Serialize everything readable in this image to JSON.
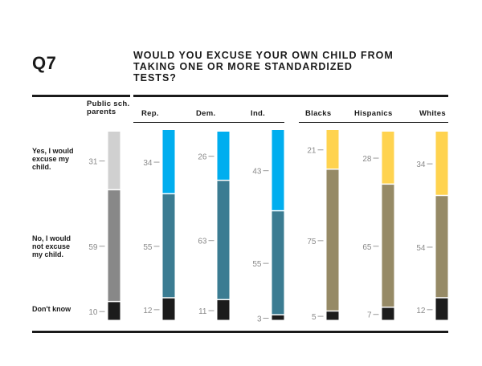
{
  "header": {
    "question_number": "Q7",
    "title": "WOULD YOU EXCUSE YOUR OWN CHILD FROM TAKING ONE OR MORE STANDARDIZED TESTS?"
  },
  "row_labels": {
    "yes": "Yes, I would excuse my child.",
    "no": "No, I would not excuse my child.",
    "dont_know": "Don't know"
  },
  "column_headers": {
    "public": "Public sch. parents",
    "rep": "Rep.",
    "dem": "Dem.",
    "ind": "Ind.",
    "blacks": "Blacks",
    "hispanics": "Hispanics",
    "whites": "Whites"
  },
  "colors": {
    "public_top": "#d0d0d0",
    "public_mid": "#888888",
    "party_top": "#00aeef",
    "party_mid": "#3b7c92",
    "race_top": "#ffd34f",
    "race_mid": "#968a66",
    "bottom": "#1c1c1c"
  },
  "chart_data": {
    "type": "bar",
    "stacked": true,
    "categories": [
      "Public sch. parents",
      "Rep.",
      "Dem.",
      "Ind.",
      "Blacks",
      "Hispanics",
      "Whites"
    ],
    "series": [
      {
        "name": "Yes, I would excuse my child.",
        "values": [
          31,
          34,
          26,
          43,
          21,
          28,
          34
        ]
      },
      {
        "name": "No, I would not excuse my child.",
        "values": [
          59,
          55,
          63,
          55,
          75,
          65,
          54
        ]
      },
      {
        "name": "Don't know",
        "values": [
          10,
          12,
          11,
          3,
          5,
          7,
          12
        ]
      }
    ],
    "ylim": [
      0,
      100
    ]
  }
}
